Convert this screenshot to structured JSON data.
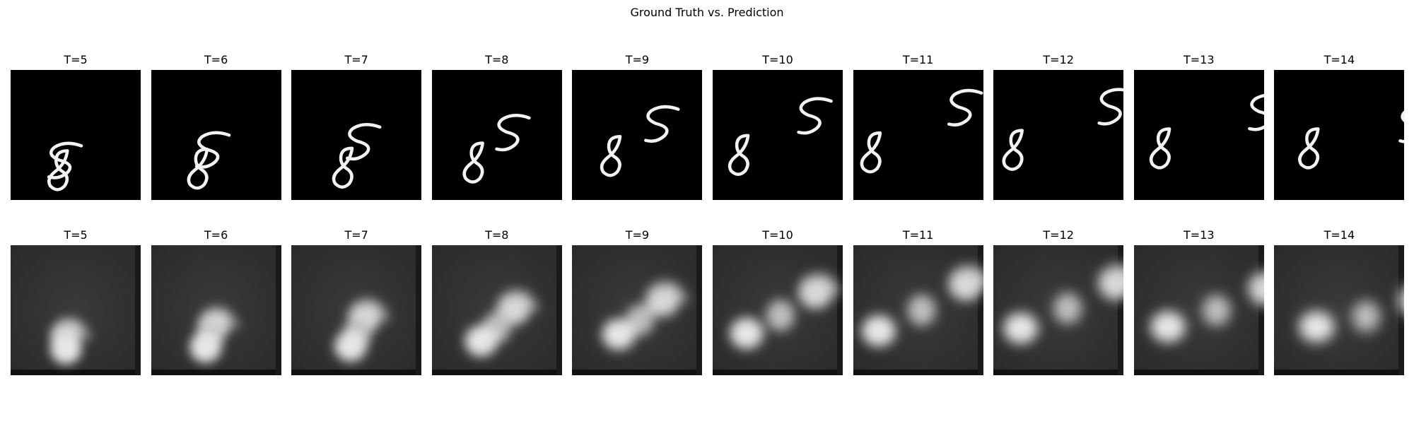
{
  "figure": {
    "title": "Ground Truth vs. Prediction"
  },
  "rows": [
    {
      "kind": "ground-truth",
      "frames": [
        {
          "label": "T=5"
        },
        {
          "label": "T=6"
        },
        {
          "label": "T=7"
        },
        {
          "label": "T=8"
        },
        {
          "label": "T=9"
        },
        {
          "label": "T=10"
        },
        {
          "label": "T=11"
        },
        {
          "label": "T=12"
        },
        {
          "label": "T=13"
        },
        {
          "label": "T=14"
        }
      ]
    },
    {
      "kind": "prediction",
      "frames": [
        {
          "label": "T=5"
        },
        {
          "label": "T=6"
        },
        {
          "label": "T=7"
        },
        {
          "label": "T=8"
        },
        {
          "label": "T=9"
        },
        {
          "label": "T=10"
        },
        {
          "label": "T=11"
        },
        {
          "label": "T=12"
        },
        {
          "label": "T=13"
        },
        {
          "label": "T=14"
        }
      ]
    }
  ]
}
